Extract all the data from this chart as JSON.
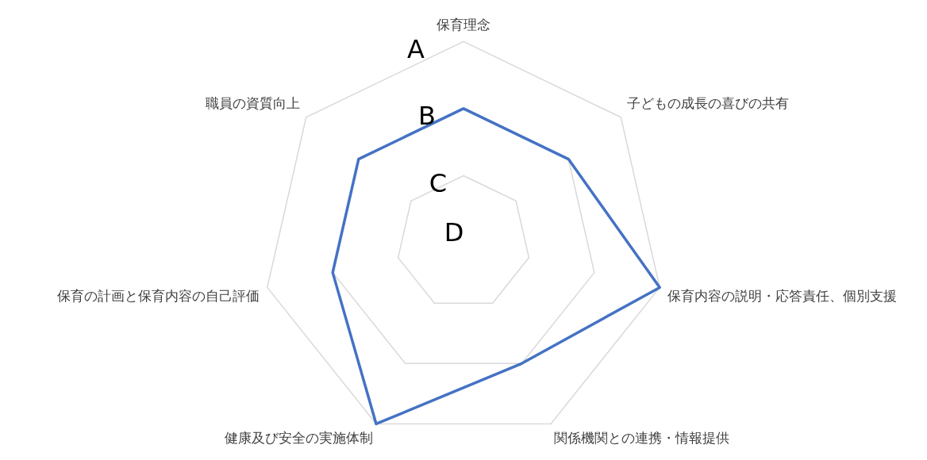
{
  "chart_data": {
    "type": "radar",
    "categories": [
      "保育理念",
      "子どもの成長の喜びの共有",
      "保育内容の説明・応答責任、個別支援",
      "関係機関との連携・情報提供",
      "健康及び安全の実施体制",
      "保育の計画と保育内容の自己評価",
      "職員の資質向上"
    ],
    "series": [
      {
        "color": "#4472c4",
        "values": [
          2,
          2,
          3,
          2,
          3,
          2,
          2
        ]
      }
    ],
    "ylim": [
      0,
      3
    ],
    "yticks": [
      {
        "value": 0,
        "label": "D"
      },
      {
        "value": 1,
        "label": "C"
      },
      {
        "value": 2,
        "label": "B"
      },
      {
        "value": 3,
        "label": "A"
      }
    ],
    "grid": true,
    "legend": false,
    "marker": "none",
    "line_style": "solid"
  }
}
